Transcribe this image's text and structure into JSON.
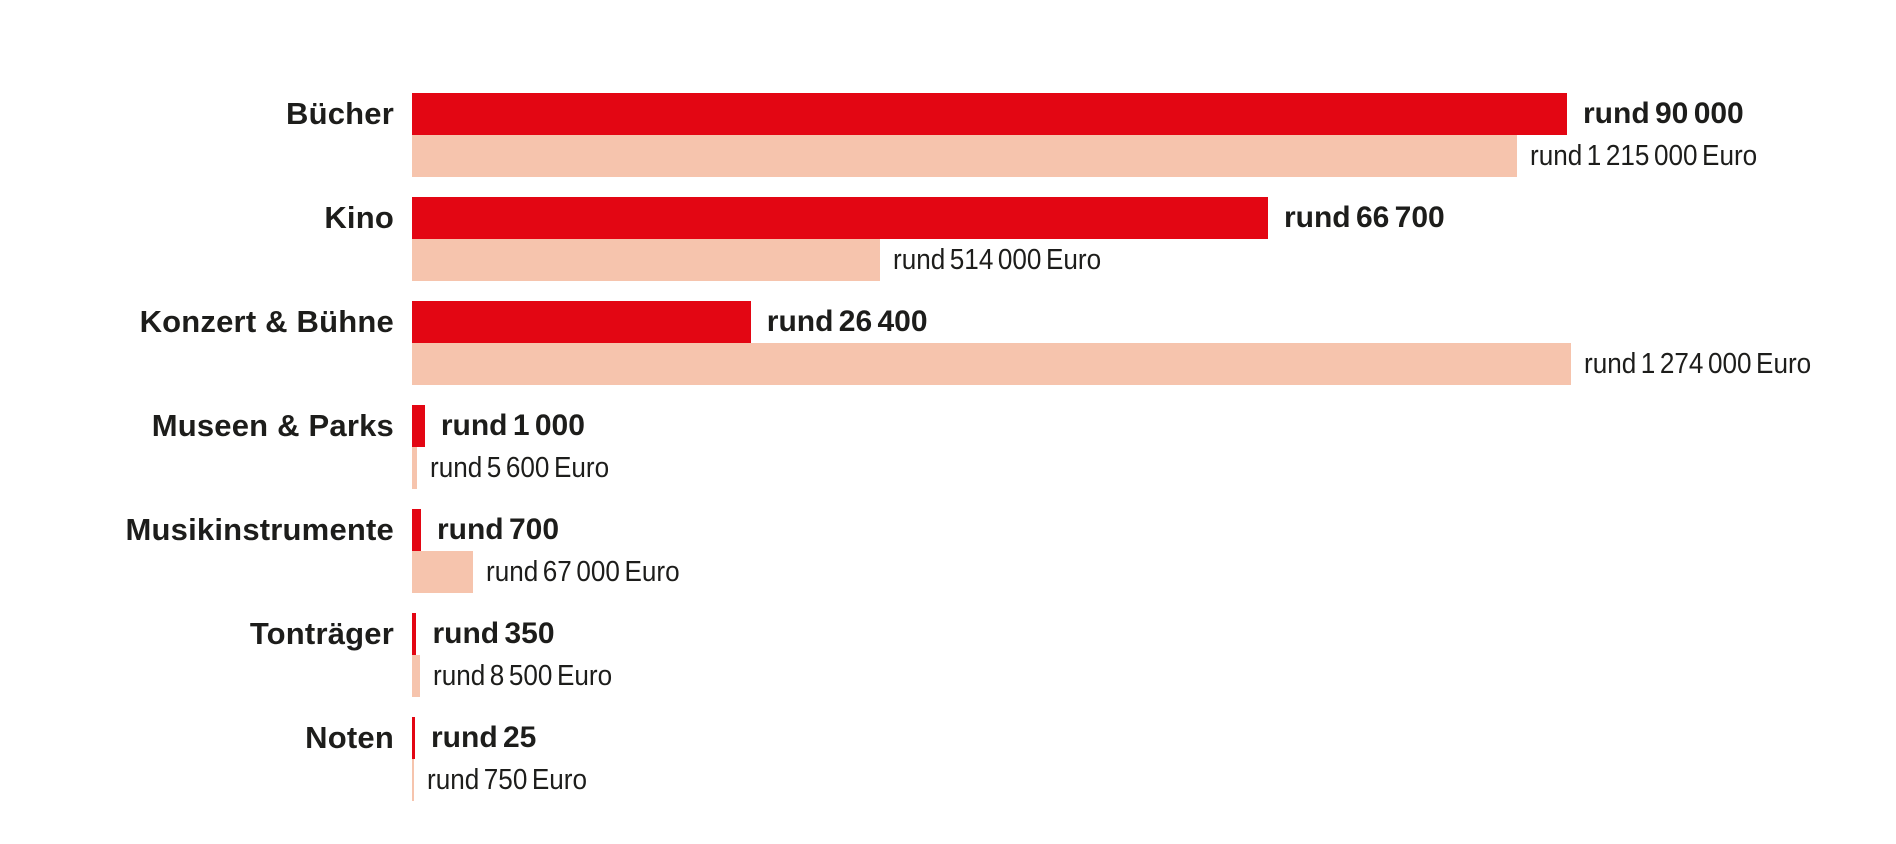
{
  "colors": {
    "count_bar": "#e30613",
    "euro_bar": "#f6c4ad",
    "text": "#1d1d1b",
    "background": "#ffffff"
  },
  "chart_data": {
    "type": "bar",
    "orientation": "horizontal",
    "title": "",
    "legend_position": "none",
    "grid": false,
    "categories": [
      "Bücher",
      "Kino",
      "Konzert & Bühne",
      "Museen & Parks",
      "Musikinstrumente",
      "Tonträger",
      "Noten"
    ],
    "series": [
      {
        "name": "count",
        "color": "#e30613",
        "values": [
          90000,
          66700,
          26400,
          1000,
          700,
          350,
          25
        ],
        "labels": [
          "rund 90 000",
          "rund 66 700",
          "rund 26 400",
          "rund 1 000",
          "rund 700",
          "rund 350",
          "rund 25"
        ]
      },
      {
        "name": "euro",
        "color": "#f6c4ad",
        "values": [
          1215000,
          514000,
          1274000,
          5600,
          67000,
          8500,
          750
        ],
        "labels": [
          "rund 1 215 000 Euro",
          "rund 514 000 Euro",
          "rund 1 274 000 Euro",
          "rund 5 600 Euro",
          "rund 67 000 Euro",
          "rund 8 500 Euro",
          "rund 750 Euro"
        ]
      }
    ],
    "axis": {
      "count_axis_max": 90000,
      "euro_axis_max": 1274000
    }
  }
}
